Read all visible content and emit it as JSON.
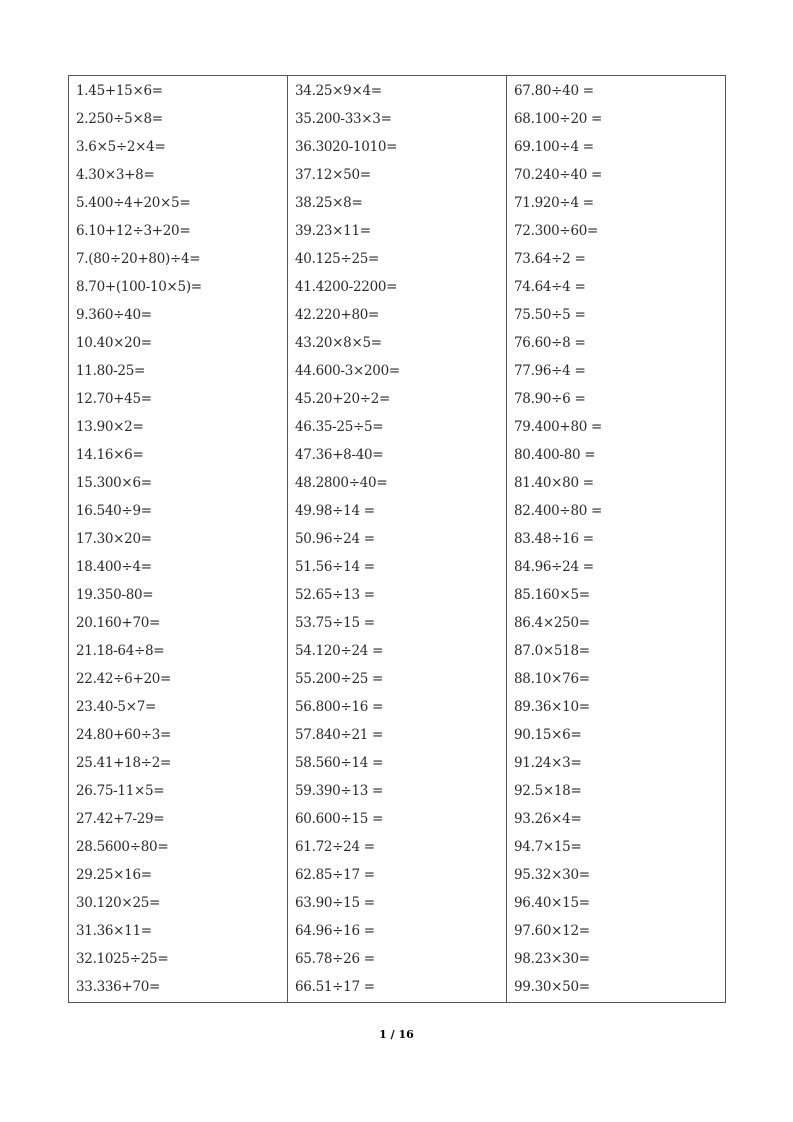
{
  "columns": [
    [
      "1.45+15×6=",
      "2.250÷5×8=",
      "3.6×5÷2×4=",
      "4.30×3+8=",
      "5.400÷4+20×5=",
      "6.10+12÷3+20=",
      "7.(80÷20+80)÷4=",
      "8.70+(100-10×5)=",
      "9.360÷40=",
      "10.40×20=",
      "11.80-25=",
      "12.70+45=",
      "13.90×2=",
      "14.16×6=",
      "15.300×6=",
      "16.540÷9=",
      "17.30×20=",
      "18.400÷4=",
      "19.350-80=",
      "20.160+70=",
      "21.18-64÷8=",
      "22.42÷6+20=",
      "23.40-5×7=",
      "24.80+60÷3=",
      "25.41+18÷2=",
      "26.75-11×5=",
      "27.42+7-29=",
      "28.5600÷80=",
      "29.25×16=",
      "30.120×25=",
      "31.36×11=",
      "32.1025÷25=",
      "33.336+70="
    ],
    [
      "34.25×9×4=",
      "35.200-33×3=",
      "36.3020-1010=",
      "37.12×50=",
      "38.25×8=",
      "39.23×11=",
      "40.125÷25=",
      "41.4200-2200=",
      "42.220+80=",
      "43.20×8×5=",
      "44.600-3×200=",
      "45.20+20÷2=",
      "46.35-25÷5=",
      "47.36+8-40=",
      "48.2800÷40=",
      "49.98÷14 =",
      "50.96÷24 =",
      "51.56÷14 =",
      "52.65÷13 =",
      "53.75÷15 =",
      "54.120÷24 =",
      "55.200÷25 =",
      "56.800÷16 =",
      "57.840÷21 =",
      "58.560÷14 =",
      "59.390÷13 =",
      "60.600÷15 =",
      "61.72÷24 =",
      "62.85÷17 =",
      "63.90÷15 =",
      "64.96÷16 =",
      "65.78÷26 =",
      "66.51÷17 ="
    ],
    [
      "67.80÷40 =",
      "68.100÷20 =",
      "69.100÷4 =",
      "70.240÷40 =",
      "71.920÷4 =",
      "72.300÷60=",
      "73.64÷2 =",
      "74.64÷4 =",
      "75.50÷5 =",
      "76.60÷8 =",
      "77.96÷4 =",
      "78.90÷6 =",
      "79.400+80 =",
      "80.400-80 =",
      "81.40×80 =",
      "82.400÷80 =",
      "83.48÷16 =",
      "84.96÷24 =",
      "85.160×5=",
      "86.4×250=",
      "87.0×518=",
      "88.10×76=",
      "89.36×10=",
      "90.15×6=",
      "91.24×3=",
      "92.5×18=",
      "93.26×4=",
      "94.7×15=",
      "95.32×30=",
      "96.40×15=",
      "97.60×12=",
      "98.23×30=",
      "99.30×50="
    ]
  ],
  "footer": {
    "page": "1 / 16"
  }
}
